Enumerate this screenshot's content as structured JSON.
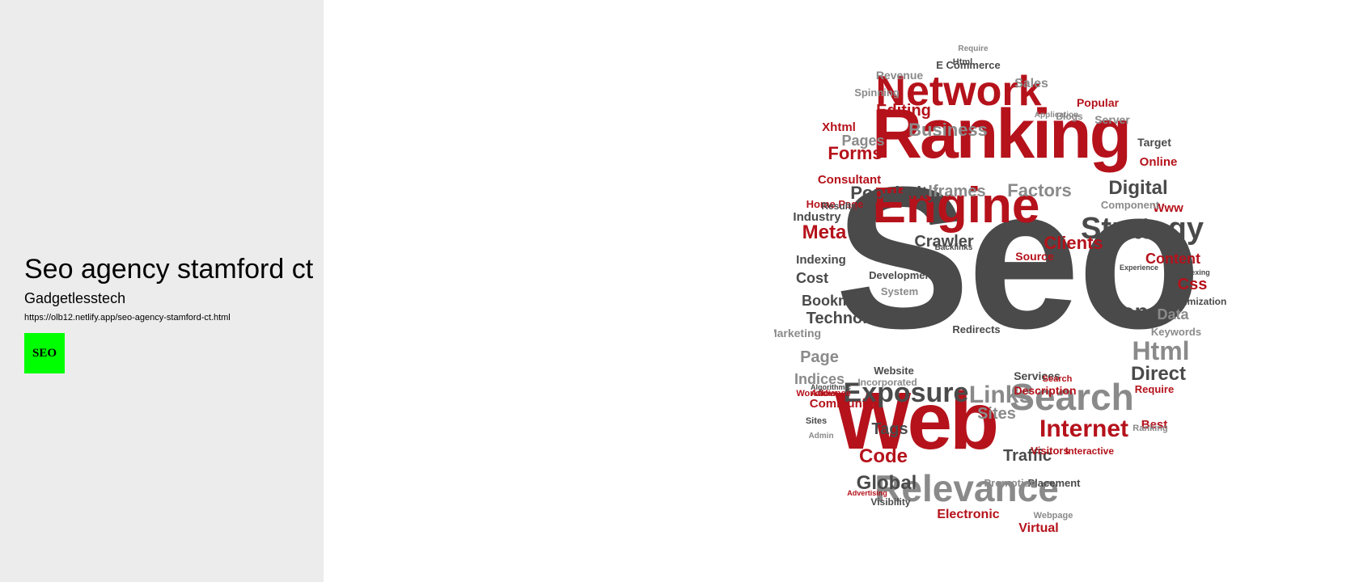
{
  "sidebar": {
    "title": "Seo agency stamford ct",
    "site_name": "Gadgetlesstech",
    "url": "https://olb12.netlify.app/seo-agency-stamford-ct.html",
    "badge_text": "SEO",
    "badge_color": "#00ff00"
  },
  "word_cloud": {
    "colors": {
      "red": "#b5121b",
      "gray": "#4a4a4a",
      "light": "#8a8a8a"
    },
    "words": [
      {
        "text": "Seo",
        "c": "gray"
      },
      {
        "text": "Ranking",
        "c": "red"
      },
      {
        "text": "Engine",
        "c": "red"
      },
      {
        "text": "Network",
        "c": "red"
      },
      {
        "text": "Web",
        "c": "red"
      },
      {
        "text": "Relevance",
        "c": "light"
      },
      {
        "text": "Search",
        "c": "light"
      },
      {
        "text": "Strategy",
        "c": "gray"
      },
      {
        "text": "Exposure",
        "c": "gray"
      },
      {
        "text": "Links",
        "c": "light"
      },
      {
        "text": "Internet",
        "c": "red"
      },
      {
        "text": "Top",
        "c": "gray"
      },
      {
        "text": "Html",
        "c": "light"
      },
      {
        "text": "Direct",
        "c": "gray"
      },
      {
        "text": "Digital",
        "c": "gray"
      },
      {
        "text": "Popularity",
        "c": "gray"
      },
      {
        "text": "Iframes",
        "c": "light"
      },
      {
        "text": "Factors",
        "c": "light"
      },
      {
        "text": "Business",
        "c": "light"
      },
      {
        "text": "Editing",
        "c": "red"
      },
      {
        "text": "Forms",
        "c": "red"
      },
      {
        "text": "Meta",
        "c": "red"
      },
      {
        "text": "Clients",
        "c": "red"
      },
      {
        "text": "Crawler",
        "c": "gray"
      },
      {
        "text": "Technology",
        "c": "gray"
      },
      {
        "text": "Bookmark",
        "c": "gray"
      },
      {
        "text": "Code",
        "c": "red"
      },
      {
        "text": "Global",
        "c": "gray"
      },
      {
        "text": "Traffic",
        "c": "gray"
      },
      {
        "text": "Content",
        "c": "red"
      },
      {
        "text": "Css",
        "c": "red"
      },
      {
        "text": "Data",
        "c": "light"
      },
      {
        "text": "Tags",
        "c": "gray"
      },
      {
        "text": "Sites",
        "c": "light"
      },
      {
        "text": "Electronic",
        "c": "red"
      },
      {
        "text": "Virtual",
        "c": "red"
      },
      {
        "text": "Community",
        "c": "red"
      },
      {
        "text": "Indices",
        "c": "light"
      },
      {
        "text": "Page",
        "c": "light"
      },
      {
        "text": "Cost",
        "c": "gray"
      },
      {
        "text": "Indexing",
        "c": "gray"
      },
      {
        "text": "Industry",
        "c": "gray"
      },
      {
        "text": "Consultant",
        "c": "red"
      },
      {
        "text": "Home Page",
        "c": "red"
      },
      {
        "text": "Results",
        "c": "gray"
      },
      {
        "text": "Pages",
        "c": "light"
      },
      {
        "text": "Xhtml",
        "c": "red"
      },
      {
        "text": "Revenue",
        "c": "light"
      },
      {
        "text": "E Commerce",
        "c": "gray"
      },
      {
        "text": "Sales",
        "c": "light"
      },
      {
        "text": "Popular",
        "c": "red"
      },
      {
        "text": "Server",
        "c": "light"
      },
      {
        "text": "Target",
        "c": "gray"
      },
      {
        "text": "Online",
        "c": "red"
      },
      {
        "text": "Www",
        "c": "red"
      },
      {
        "text": "Component",
        "c": "light"
      },
      {
        "text": "Source",
        "c": "red"
      },
      {
        "text": "Development",
        "c": "gray"
      },
      {
        "text": "System",
        "c": "light"
      },
      {
        "text": "Description",
        "c": "red"
      },
      {
        "text": "Require",
        "c": "red"
      },
      {
        "text": "Services",
        "c": "gray"
      },
      {
        "text": "Placement",
        "c": "gray"
      },
      {
        "text": "Promotion",
        "c": "light"
      },
      {
        "text": "Visibility",
        "c": "gray"
      },
      {
        "text": "Webpage",
        "c": "light"
      },
      {
        "text": "Marketing",
        "c": "light"
      },
      {
        "text": "Spinning",
        "c": "light"
      },
      {
        "text": "Blogs",
        "c": "light"
      },
      {
        "text": "Optimization",
        "c": "gray"
      },
      {
        "text": "Keywords",
        "c": "light"
      },
      {
        "text": "Visitors",
        "c": "red"
      },
      {
        "text": "Interactive",
        "c": "red"
      },
      {
        "text": "Best",
        "c": "red"
      },
      {
        "text": "Redirects",
        "c": "gray"
      },
      {
        "text": "Website",
        "c": "gray"
      },
      {
        "text": "Workflow",
        "c": "red"
      },
      {
        "text": "Audience",
        "c": "red"
      },
      {
        "text": "Incorporated",
        "c": "light"
      },
      {
        "text": "Search",
        "c": "red"
      },
      {
        "text": "Backlinks",
        "c": "gray"
      },
      {
        "text": "Admin",
        "c": "light"
      },
      {
        "text": "Experience",
        "c": "gray"
      },
      {
        "text": "Spamdexing",
        "c": "gray"
      },
      {
        "text": "Ranking",
        "c": "light"
      },
      {
        "text": "Application",
        "c": "light"
      },
      {
        "text": "Algorithmic",
        "c": "gray"
      },
      {
        "text": "Advertising",
        "c": "red"
      },
      {
        "text": "Html",
        "c": "gray"
      },
      {
        "text": "Require",
        "c": "light"
      },
      {
        "text": "Sites",
        "c": "gray"
      }
    ]
  }
}
